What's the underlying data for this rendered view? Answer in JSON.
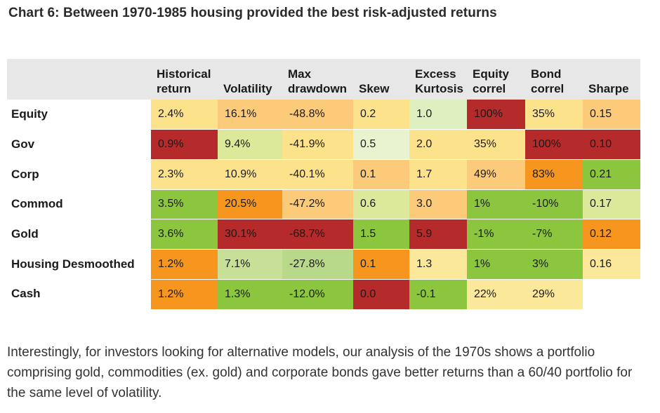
{
  "title": "Chart 6: Between 1970-1985 housing provided the best risk-adjusted returns",
  "paragraph": "Interestingly, for investors looking for alternative models, our analysis of the 1970s shows a portfolio comprising gold, commodities (ex. gold) and corporate bonds gave better returns than a 60/40 portfolio for the same level of volatility.",
  "colors": {
    "dark_red": "#b52a2a",
    "orange": "#f7961e",
    "light_orange": "#fccb7a",
    "pale_yellow": "#fde28c",
    "light_yellow": "#fbe89a",
    "pale_green": "#dff0c0",
    "light_green": "#b8d98a",
    "bright_green": "#8cc63f",
    "header_gray": "#e7e7e7"
  },
  "chart_data": {
    "type": "table",
    "title": "Chart 6: Between 1970-1985 housing provided the best risk-adjusted returns",
    "columns": [
      "Historical return",
      "Volatility",
      "Max drawdown",
      "Skew",
      "Excess Kurtosis",
      "Equity correl",
      "Bond correl",
      "Sharpe"
    ],
    "rows": [
      {
        "name": "Equity",
        "values": [
          "2.4%",
          "16.1%",
          "-48.8%",
          "0.2",
          "1.0",
          "100%",
          "35%",
          "0.15"
        ],
        "colors": [
          "#fde28c",
          "#fccb7a",
          "#fccb7a",
          "#fde28c",
          "#dff0c0",
          "#b52a2a",
          "#fde28c",
          "#fccb7a"
        ]
      },
      {
        "name": "Gov",
        "values": [
          "0.9%",
          "9.4%",
          "-41.9%",
          "0.5",
          "2.0",
          "35%",
          "100%",
          "0.10"
        ],
        "colors": [
          "#b52a2a",
          "#dce89a",
          "#fde28c",
          "#e8f4d0",
          "#fde28c",
          "#fde28c",
          "#b52a2a",
          "#b52a2a"
        ]
      },
      {
        "name": "Corp",
        "values": [
          "2.3%",
          "10.9%",
          "-40.1%",
          "0.1",
          "1.7",
          "49%",
          "83%",
          "0.21"
        ],
        "colors": [
          "#fde28c",
          "#fde28c",
          "#fde28c",
          "#fccb7a",
          "#fde28c",
          "#fccb7a",
          "#f7961e",
          "#8cc63f"
        ]
      },
      {
        "name": "Commod",
        "values": [
          "3.5%",
          "20.5%",
          "-47.2%",
          "0.6",
          "3.0",
          "1%",
          "-10%",
          "0.17"
        ],
        "colors": [
          "#8cc63f",
          "#f7961e",
          "#fccb7a",
          "#dce89a",
          "#fccb7a",
          "#8cc63f",
          "#8cc63f",
          "#dce89a"
        ]
      },
      {
        "name": "Gold",
        "values": [
          "3.6%",
          "30.1%",
          "-68.7%",
          "1.5",
          "5.9",
          "-1%",
          "-7%",
          "0.12"
        ],
        "colors": [
          "#8cc63f",
          "#b52a2a",
          "#b52a2a",
          "#8cc63f",
          "#b52a2a",
          "#8cc63f",
          "#8cc63f",
          "#f7961e"
        ]
      },
      {
        "name": "Housing Desmoothed",
        "values": [
          "1.2%",
          "7.1%",
          "-27.8%",
          "0.1",
          "1.3",
          "1%",
          "3%",
          "0.16"
        ],
        "colors": [
          "#f7961e",
          "#c8df98",
          "#b8d98a",
          "#f7961e",
          "#fbe89a",
          "#8cc63f",
          "#8cc63f",
          "#fbe89a"
        ]
      },
      {
        "name": "Cash",
        "values": [
          "1.2%",
          "1.3%",
          "-12.0%",
          "0.0",
          "-0.1",
          "22%",
          "29%",
          ""
        ],
        "colors": [
          "#f7961e",
          "#8cc63f",
          "#8cc63f",
          "#b52a2a",
          "#8cc63f",
          "#fbe89a",
          "#fbe89a",
          "#ffffff"
        ]
      }
    ]
  }
}
